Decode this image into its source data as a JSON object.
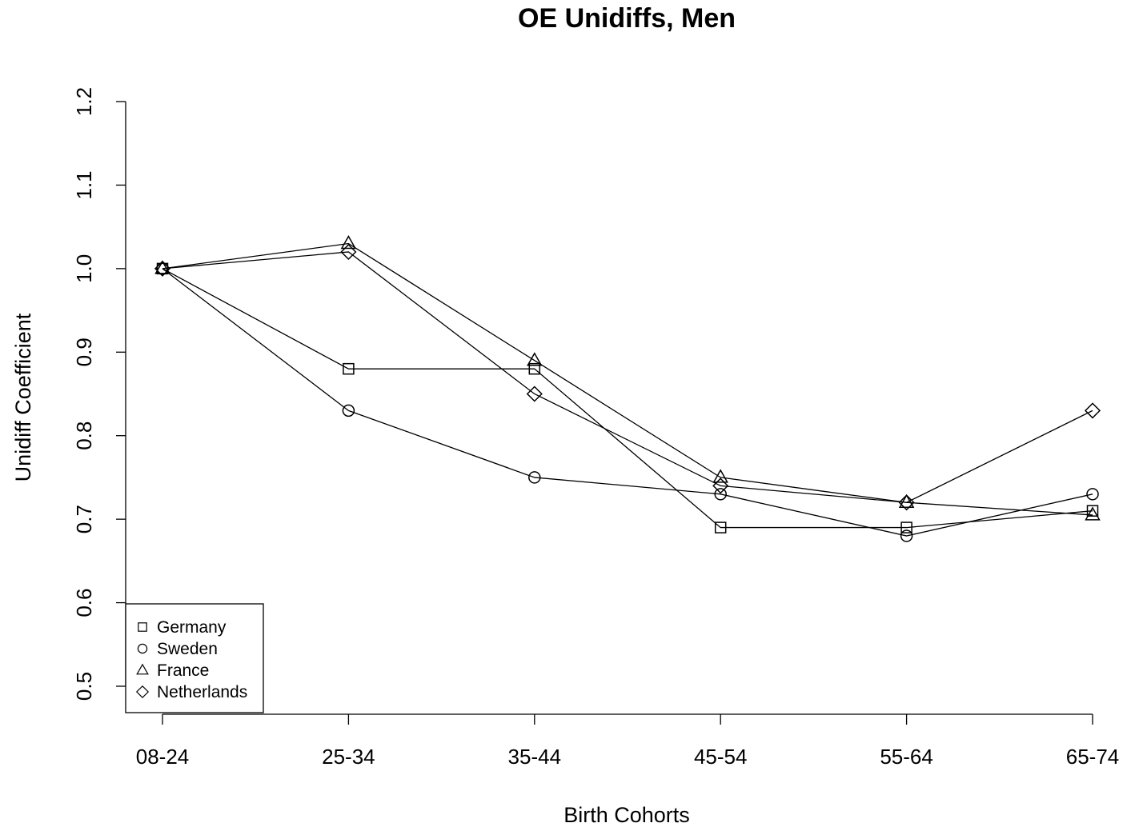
{
  "chart_data": {
    "type": "line",
    "title": "OE Unidiffs, Men",
    "xlabel": "Birth Cohorts",
    "ylabel": "Unidiff Coefficient",
    "categories": [
      "08-24",
      "25-34",
      "35-44",
      "45-54",
      "55-64",
      "65-74"
    ],
    "ylim": [
      0.5,
      1.2
    ],
    "yticks": [
      "0.5",
      "0.6",
      "0.7",
      "0.8",
      "0.9",
      "1.0",
      "1.1",
      "1.2"
    ],
    "grid": false,
    "legend_position": "bottom-left",
    "series": [
      {
        "name": "Germany",
        "marker": "square",
        "values": [
          1.0,
          0.88,
          0.88,
          0.69,
          0.69,
          0.71
        ]
      },
      {
        "name": "Sweden",
        "marker": "circle",
        "values": [
          1.0,
          0.83,
          0.75,
          0.73,
          0.68,
          0.73
        ]
      },
      {
        "name": "France",
        "marker": "triangle",
        "values": [
          1.0,
          1.03,
          0.89,
          0.75,
          0.72,
          0.705
        ]
      },
      {
        "name": "Netherlands",
        "marker": "diamond",
        "values": [
          1.0,
          1.02,
          0.85,
          0.74,
          0.72,
          0.83
        ]
      }
    ]
  }
}
